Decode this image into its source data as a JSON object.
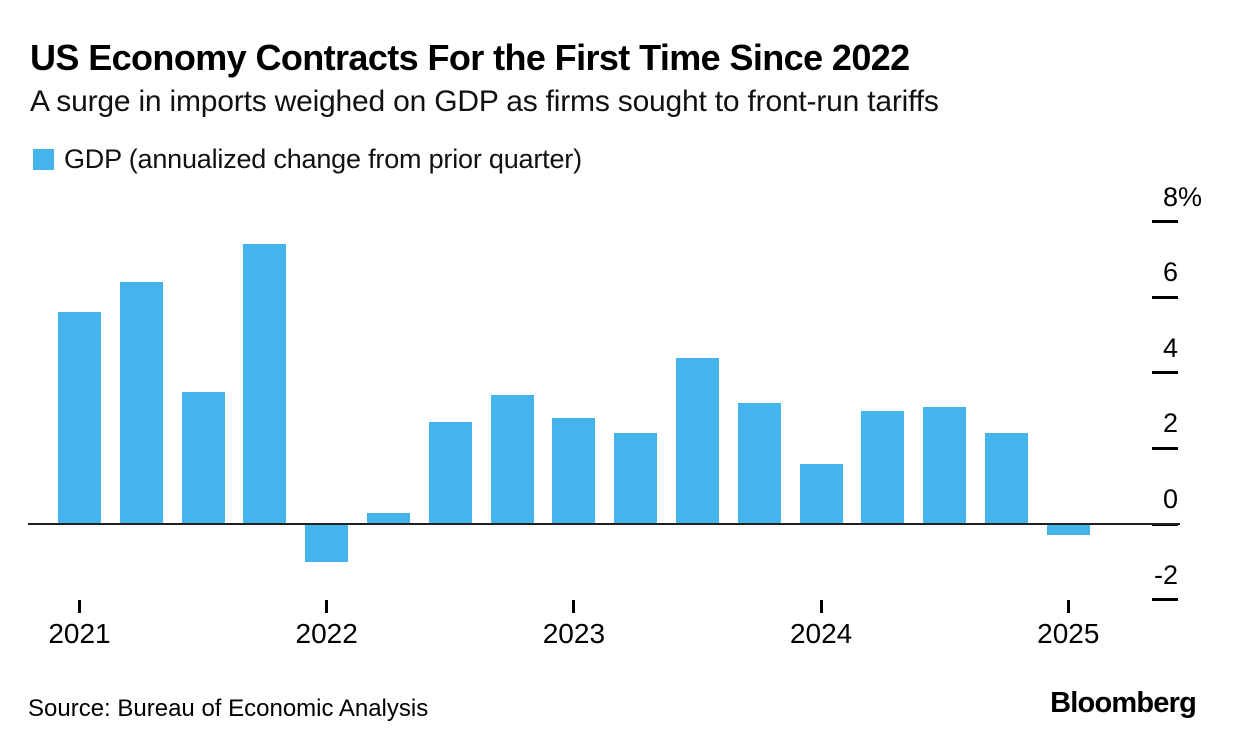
{
  "header": {
    "title": "US Economy Contracts For the First Time Since 2022",
    "subtitle": "A surge in imports weighed on GDP as firms sought to front-run tariffs"
  },
  "legend": {
    "label": "GDP (annualized change from prior quarter)",
    "swatch_color": "#44b4ec"
  },
  "chart_data": {
    "type": "bar",
    "title": "US Economy Contracts For the First Time Since 2022",
    "subtitle": "A surge in imports weighed on GDP as firms sought to front-run tariffs",
    "series_name": "GDP (annualized change from prior quarter)",
    "categories": [
      "2021 Q1",
      "2021 Q2",
      "2021 Q3",
      "2021 Q4",
      "2022 Q1",
      "2022 Q2",
      "2022 Q3",
      "2022 Q4",
      "2023 Q1",
      "2023 Q2",
      "2023 Q3",
      "2023 Q4",
      "2024 Q1",
      "2024 Q2",
      "2024 Q3",
      "2024 Q4",
      "2025 Q1"
    ],
    "values": [
      5.6,
      6.4,
      3.5,
      7.4,
      -1.0,
      0.3,
      2.7,
      3.4,
      2.8,
      2.4,
      4.4,
      3.2,
      1.6,
      3.0,
      3.1,
      2.4,
      -0.3
    ],
    "unit": "%",
    "xlabel": "",
    "ylabel": "GDP annualized change (%)",
    "x_tick_labels": [
      "2021",
      "2022",
      "2023",
      "2024",
      "2025"
    ],
    "y_ticks": [
      8,
      6,
      4,
      2,
      0,
      -2
    ],
    "y_tick_labels": [
      "8%",
      "6",
      "4",
      "2",
      "0",
      "-2"
    ],
    "ylim": [
      -2,
      8
    ],
    "bar_color": "#44b4ec",
    "grid": false,
    "legend_position": "top-left",
    "baseline": 0
  },
  "footer": {
    "source": "Source: Bureau of Economic Analysis",
    "brand": "Bloomberg"
  }
}
